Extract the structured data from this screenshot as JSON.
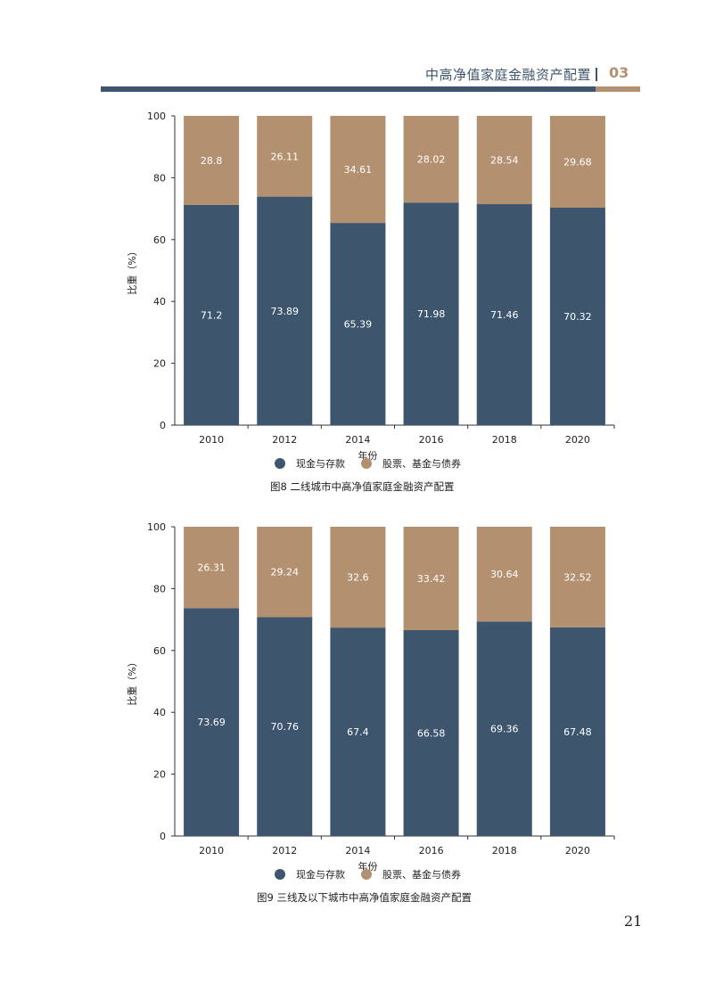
{
  "header": {
    "title": "中高净值家庭金融资产配置",
    "section_number": "03"
  },
  "colors": {
    "series1": "#3d566e",
    "series2": "#b39170",
    "header_blue": "#3d566e",
    "header_tan": "#b39170"
  },
  "chart_data": [
    {
      "type": "bar",
      "stacked": true,
      "caption": "图8   二线城市中高净值家庭金融资产配置",
      "xlabel": "年份",
      "ylabel": "比重（%）",
      "ylim": [
        0,
        100
      ],
      "yticks": [
        0,
        20,
        40,
        60,
        80,
        100
      ],
      "categories": [
        "2010",
        "2012",
        "2014",
        "2016",
        "2018",
        "2020"
      ],
      "series": [
        {
          "name": "现金与存款",
          "values": [
            71.2,
            73.89,
            65.39,
            71.98,
            71.46,
            70.32
          ],
          "labels": [
            "71.2",
            "73.89",
            "65.39",
            "71.98",
            "71.46",
            "70.32"
          ]
        },
        {
          "name": "股票、基金与债券",
          "values": [
            28.8,
            26.11,
            34.61,
            28.02,
            28.54,
            29.68
          ],
          "labels": [
            "28.8",
            "26.11",
            "34.61",
            "28.02",
            "28.54",
            "29.68"
          ]
        }
      ],
      "legend_position": "bottom"
    },
    {
      "type": "bar",
      "stacked": true,
      "caption": "图9   三线及以下城市中高净值家庭金融资产配置",
      "xlabel": "年份",
      "ylabel": "比重（%）",
      "ylim": [
        0,
        100
      ],
      "yticks": [
        0,
        20,
        40,
        60,
        80,
        100
      ],
      "categories": [
        "2010",
        "2012",
        "2014",
        "2016",
        "2018",
        "2020"
      ],
      "series": [
        {
          "name": "现金与存款",
          "values": [
            73.69,
            70.76,
            67.4,
            66.58,
            69.36,
            67.48
          ],
          "labels": [
            "73.69",
            "70.76",
            "67.4",
            "66.58",
            "69.36",
            "67.48"
          ]
        },
        {
          "name": "股票、基金与债券",
          "values": [
            26.31,
            29.24,
            32.6,
            33.42,
            30.64,
            32.52
          ],
          "labels": [
            "26.31",
            "29.24",
            "32.6",
            "33.42",
            "30.64",
            "32.52"
          ]
        }
      ],
      "legend_position": "bottom"
    }
  ],
  "page_number": "21"
}
